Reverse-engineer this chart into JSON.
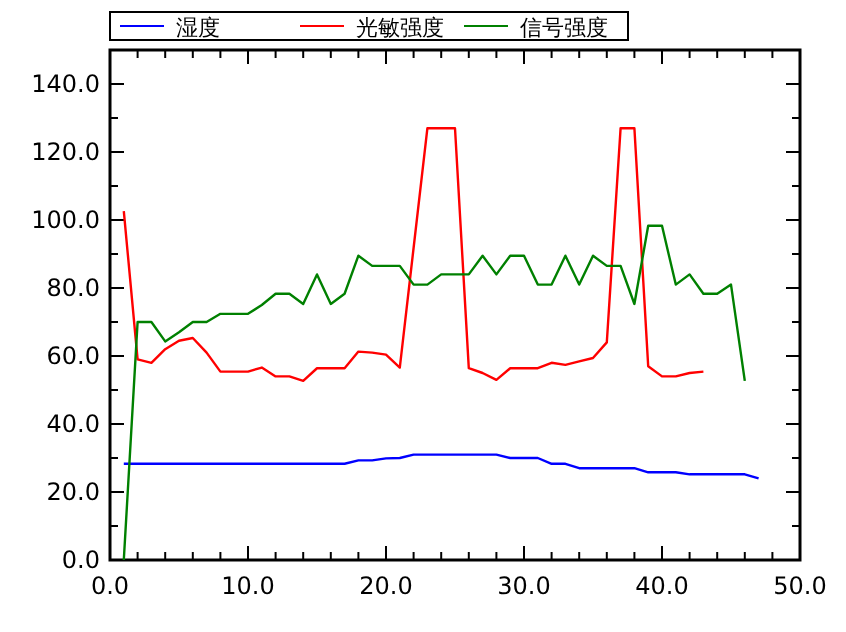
{
  "chart_data": {
    "type": "line",
    "legend": "top",
    "grid": false,
    "marker": "none",
    "line_style": "solid",
    "xlim": [
      0,
      50
    ],
    "ylim": [
      0,
      150
    ],
    "xticks": [
      {
        "value": 0,
        "label": "0.0"
      },
      {
        "value": 2,
        "label": null
      },
      {
        "value": 4,
        "label": null
      },
      {
        "value": 6,
        "label": null
      },
      {
        "value": 8,
        "label": null
      },
      {
        "value": 10,
        "label": "10.0"
      },
      {
        "value": 12,
        "label": null
      },
      {
        "value": 14,
        "label": null
      },
      {
        "value": 16,
        "label": null
      },
      {
        "value": 18,
        "label": null
      },
      {
        "value": 20,
        "label": "20.0"
      },
      {
        "value": 22,
        "label": null
      },
      {
        "value": 24,
        "label": null
      },
      {
        "value": 26,
        "label": null
      },
      {
        "value": 28,
        "label": null
      },
      {
        "value": 30,
        "label": "30.0"
      },
      {
        "value": 32,
        "label": null
      },
      {
        "value": 34,
        "label": null
      },
      {
        "value": 36,
        "label": null
      },
      {
        "value": 38,
        "label": null
      },
      {
        "value": 40,
        "label": "40.0"
      },
      {
        "value": 42,
        "label": null
      },
      {
        "value": 44,
        "label": null
      },
      {
        "value": 46,
        "label": null
      },
      {
        "value": 48,
        "label": null
      },
      {
        "value": 50,
        "label": "50.0"
      }
    ],
    "yticks": [
      {
        "value": 0,
        "label": "0.0"
      },
      {
        "value": 10,
        "label": null
      },
      {
        "value": 20,
        "label": "20.0"
      },
      {
        "value": 30,
        "label": null
      },
      {
        "value": 40,
        "label": "40.0"
      },
      {
        "value": 50,
        "label": null
      },
      {
        "value": 60,
        "label": "60.0"
      },
      {
        "value": 70,
        "label": null
      },
      {
        "value": 80,
        "label": "80.0"
      },
      {
        "value": 90,
        "label": null
      },
      {
        "value": 100,
        "label": "100.0"
      },
      {
        "value": 110,
        "label": null
      },
      {
        "value": 120,
        "label": "120.0"
      },
      {
        "value": 130,
        "label": null
      },
      {
        "value": 140,
        "label": "140.0"
      }
    ],
    "series": [
      {
        "name": "湿度",
        "color": "#0000ff",
        "x": [
          1,
          17,
          18,
          19,
          20,
          21,
          22,
          28,
          29,
          31,
          32,
          33,
          34,
          38,
          39,
          41,
          42,
          46,
          47
        ],
        "values": [
          28.3,
          28.3,
          29.3,
          29.3,
          29.9,
          30,
          31,
          31,
          30,
          30,
          28.3,
          28.3,
          27,
          27,
          25.8,
          25.8,
          25.2,
          25.2,
          24
        ]
      },
      {
        "name": "光敏强度",
        "color": "#ff0000",
        "x": [
          1,
          2,
          3,
          4,
          5,
          6,
          7,
          8,
          9,
          10,
          11,
          12,
          13,
          14,
          15,
          16,
          17,
          18,
          19,
          20,
          21,
          23,
          24,
          25,
          26,
          27,
          28,
          29,
          30,
          31,
          32,
          33,
          34,
          35,
          36,
          37,
          38,
          39,
          40,
          41,
          42,
          43
        ],
        "values": [
          102.6,
          59,
          58,
          62,
          64.5,
          65.3,
          61,
          55.4,
          55.4,
          55.4,
          56.6,
          54,
          54,
          52.7,
          56.4,
          56.4,
          56.4,
          61.3,
          61,
          60.4,
          56.6,
          127,
          127,
          127,
          56.4,
          55,
          53,
          56.4,
          56.4,
          56.4,
          58,
          57.4,
          58.4,
          59.4,
          64,
          127,
          127,
          57,
          54,
          54,
          55,
          55.4
        ]
      },
      {
        "name": "信号强度",
        "color": "#008000",
        "x": [
          1,
          2,
          3,
          4,
          5,
          6,
          7,
          8,
          9,
          10,
          11,
          12,
          13,
          14,
          15,
          16,
          17,
          18,
          19,
          20,
          21,
          22,
          23,
          24,
          25,
          26,
          27,
          28,
          29,
          30,
          31,
          32,
          33,
          34,
          35,
          36,
          37,
          38,
          39,
          40,
          41,
          42,
          43,
          44,
          45,
          46
        ],
        "values": [
          0,
          70,
          70,
          64.3,
          67,
          70,
          70,
          72.4,
          72.4,
          72.4,
          75,
          78.3,
          78.3,
          75.3,
          84,
          75.3,
          78.3,
          89.5,
          86.5,
          86.5,
          86.5,
          81,
          81,
          84,
          84,
          84,
          89.5,
          84,
          89.5,
          89.5,
          81,
          81,
          89.5,
          81,
          89.5,
          86.5,
          86.5,
          75.3,
          98.3,
          98.3,
          81,
          84,
          78.3,
          78.3,
          81,
          52.7
        ]
      }
    ]
  }
}
